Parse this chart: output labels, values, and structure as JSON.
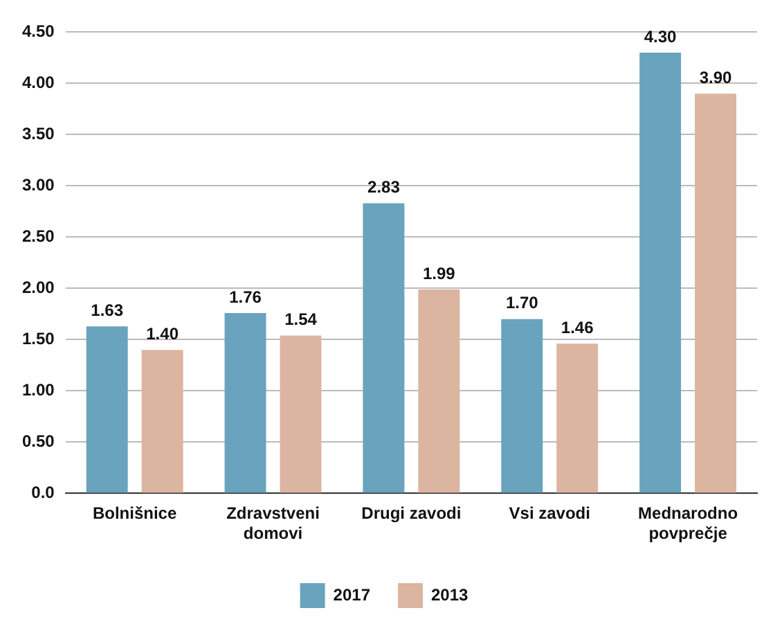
{
  "chart_data": {
    "type": "bar",
    "categories": [
      "Bolnišnice",
      "Zdravstveni domovi",
      "Drugi zavodi",
      "Vsi zavodi",
      "Mednarodno povprečje"
    ],
    "series": [
      {
        "name": "2017",
        "color": "#6aa3bd",
        "values": [
          1.63,
          1.76,
          2.83,
          1.7,
          4.3
        ],
        "value_labels": [
          "1.63",
          "1.76",
          "2.83",
          "1.70",
          "4.30"
        ]
      },
      {
        "name": "2013",
        "color": "#dbb5a0",
        "values": [
          1.4,
          1.54,
          1.99,
          1.46,
          3.9
        ],
        "value_labels": [
          "1.40",
          "1.54",
          "1.99",
          "1.46",
          "3.90"
        ]
      }
    ],
    "ylim": [
      0,
      4.5
    ],
    "yticks": [
      {
        "value": 0,
        "label": "0.0"
      },
      {
        "value": 0.5,
        "label": "0.50"
      },
      {
        "value": 1,
        "label": "1.00"
      },
      {
        "value": 1.5,
        "label": "1.50"
      },
      {
        "value": 2,
        "label": "2.00"
      },
      {
        "value": 2.5,
        "label": "2.50"
      },
      {
        "value": 3,
        "label": "3.00"
      },
      {
        "value": 3.5,
        "label": "3.50"
      },
      {
        "value": 4,
        "label": "4.00"
      },
      {
        "value": 4.5,
        "label": "4.50"
      }
    ],
    "grid": "y",
    "legend": "bottom"
  }
}
